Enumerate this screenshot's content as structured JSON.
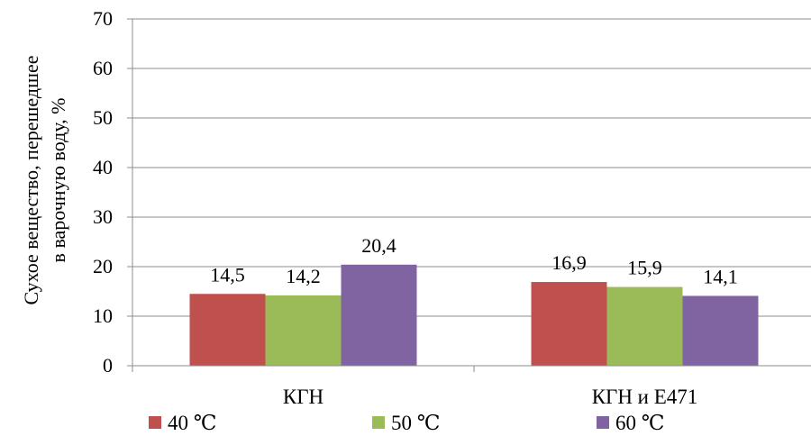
{
  "chart_data": {
    "type": "bar",
    "categories": [
      "КГН",
      "КГН и  Е471"
    ],
    "series": [
      {
        "name": "40  ℃",
        "values": [
          14.5,
          16.9
        ],
        "labels": [
          "14,5",
          "16,9"
        ],
        "color": "#c0504d"
      },
      {
        "name": "50  ℃",
        "values": [
          14.2,
          15.9
        ],
        "labels": [
          "14,2",
          "15,9"
        ],
        "color": "#9bbb59"
      },
      {
        "name": "60  ℃",
        "values": [
          20.4,
          14.1
        ],
        "labels": [
          "20,4",
          "14,1"
        ],
        "color": "#8064a2"
      }
    ],
    "ylabel_lines": [
      "Сухое вещество, перешедшее",
      "в варочную воду, %"
    ],
    "ylim": [
      0,
      70
    ],
    "yticks": [
      "0",
      "10",
      "20",
      "30",
      "40",
      "50",
      "60",
      "70"
    ],
    "grid": true,
    "legend_position": "bottom"
  }
}
